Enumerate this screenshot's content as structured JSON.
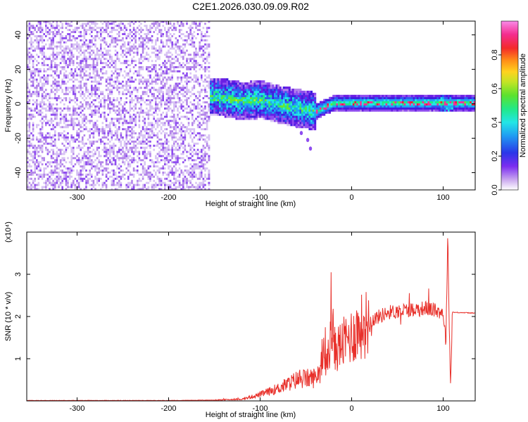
{
  "title": "C2E1.2026.030.09.09.R02",
  "colors": {
    "snr_line": "#e8302a",
    "spectrogram_palette": [
      "#ffffff",
      "#d8c4f4",
      "#b486ea",
      "#8f4df0",
      "#6a1fe4",
      "#3f1ee0",
      "#2f5cf0",
      "#1fa6f2",
      "#22e6e6",
      "#22e887",
      "#69e431",
      "#c4e425",
      "#ffd21e",
      "#ff9a18",
      "#ff4a22",
      "#f2203a",
      "#f62f9b",
      "#f97fe9"
    ]
  },
  "chart_data": [
    {
      "type": "heatmap",
      "xlabel": "Height of straight line (km)",
      "ylabel": "Frequency (Hz)",
      "xlim": [
        -355,
        135
      ],
      "ylim": [
        -50,
        48
      ],
      "xticks": [
        "-300",
        "-200",
        "-100",
        "0",
        "100"
      ],
      "xtick_values": [
        -300,
        -200,
        -100,
        0,
        100
      ],
      "yticks": [
        "-40",
        "-20",
        "0",
        "20",
        "40"
      ],
      "ytick_values": [
        -40,
        -20,
        0,
        20,
        40
      ],
      "colorbar": {
        "label": "Normalized spectral amplitude",
        "range": [
          0,
          1
        ],
        "ticks": [
          "0.0",
          "0.2",
          "0.4",
          "0.6",
          "0.8"
        ],
        "tick_values": [
          0.0,
          0.2,
          0.4,
          0.6,
          0.8
        ]
      },
      "regions": [
        {
          "x": [
            -355,
            -155
          ],
          "freq": [
            -50,
            48
          ],
          "amplitude": [
            0.0,
            0.2
          ]
        },
        {
          "x": [
            -160,
            -40
          ],
          "freq": [
            -12,
            12
          ],
          "amplitude": [
            0.15,
            0.5
          ]
        },
        {
          "x": [
            -40,
            135
          ],
          "freq": [
            -3,
            3
          ],
          "amplitude": [
            0.35,
            0.95
          ]
        }
      ],
      "center_line": {
        "x": [
          -160,
          -140,
          -120,
          -100,
          -80,
          -60,
          -40,
          -20,
          0,
          40,
          80,
          100,
          135
        ],
        "freq": [
          4,
          3,
          1,
          2,
          -1,
          -3,
          -5,
          0,
          0,
          0,
          0,
          0,
          0
        ]
      }
    },
    {
      "type": "line",
      "xlabel": "Height of straight line (km)",
      "ylabel": "SNR (10 * v/v)",
      "multiplier": "(x10⁴)",
      "xlim": [
        -355,
        135
      ],
      "ylim": [
        0,
        4
      ],
      "xticks": [
        "-300",
        "-200",
        "-100",
        "0",
        "100"
      ],
      "xtick_values": [
        -300,
        -200,
        -100,
        0,
        100
      ],
      "yticks": [
        "1",
        "2",
        "3"
      ],
      "ytick_values": [
        1,
        2,
        3
      ],
      "series": [
        {
          "x": [
            -355,
            -200,
            -150,
            -120,
            -100,
            -80,
            -60,
            -40,
            -30,
            -20,
            -10,
            0,
            10,
            20,
            30,
            40,
            60,
            80,
            90,
            100,
            103,
            105,
            108,
            110,
            135
          ],
          "values": [
            0.01,
            0.01,
            0.02,
            0.04,
            0.15,
            0.3,
            0.5,
            0.55,
            0.9,
            1.2,
            1.35,
            1.55,
            1.75,
            1.9,
            2.0,
            2.1,
            2.15,
            2.2,
            2.15,
            2.1,
            1.4,
            3.9,
            0.3,
            2.1,
            2.08
          ]
        }
      ]
    }
  ]
}
